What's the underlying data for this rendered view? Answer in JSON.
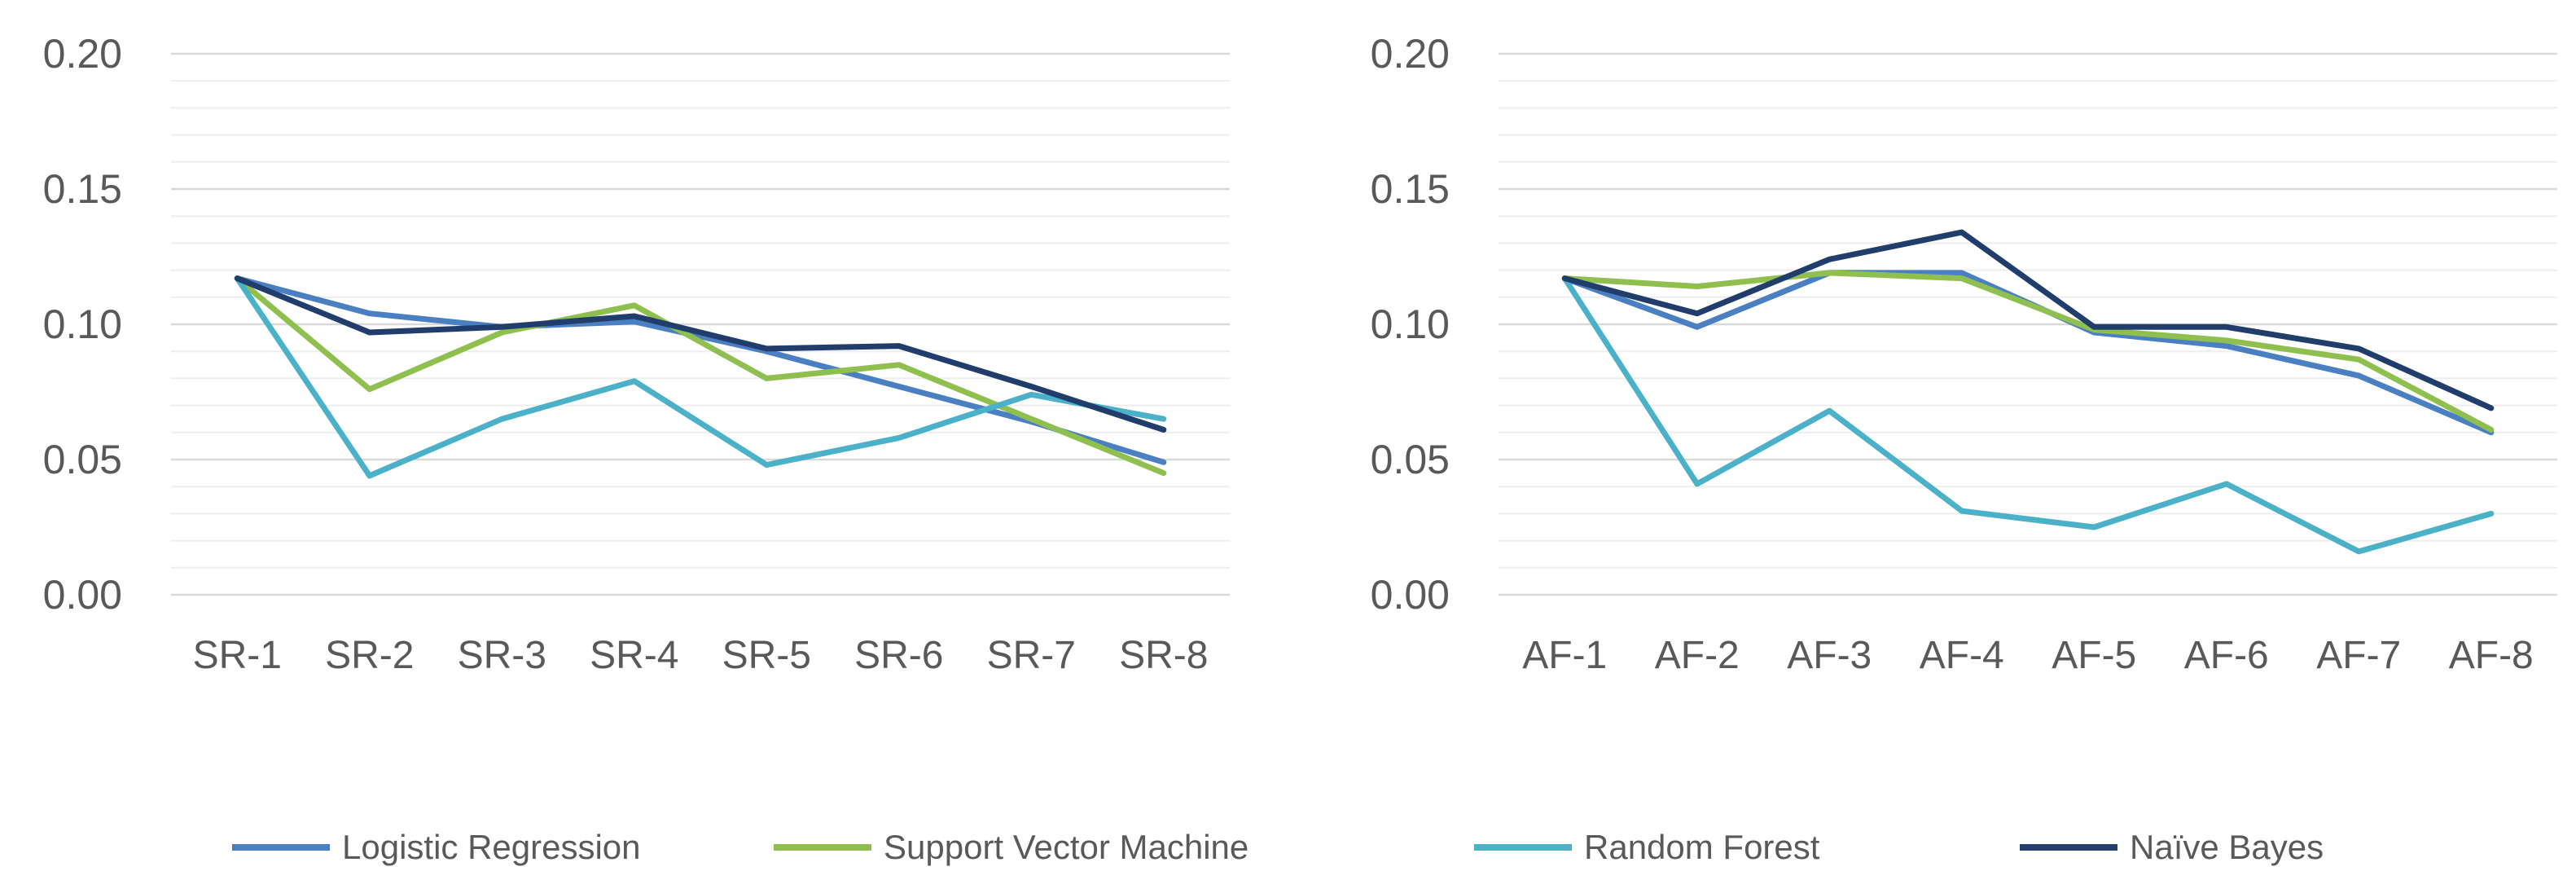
{
  "chart_data": [
    {
      "type": "line",
      "title": "",
      "xlabel": "",
      "ylabel": "",
      "ylim": [
        0,
        0.2
      ],
      "yticks": [
        "0.00",
        "0.05",
        "0.10",
        "0.15",
        "0.20"
      ],
      "ytick_values": [
        0,
        0.05,
        0.1,
        0.15,
        0.2
      ],
      "minor_grid_step": 0.01,
      "categories": [
        "SR-1",
        "SR-2",
        "SR-3",
        "SR-4",
        "SR-5",
        "SR-6",
        "SR-7",
        "SR-8"
      ],
      "series": [
        {
          "name": "Logistic Regression",
          "values": [
            0.117,
            0.104,
            0.099,
            0.101,
            0.09,
            0.077,
            0.064,
            0.049
          ]
        },
        {
          "name": "Support Vector Machine",
          "values": [
            0.117,
            0.076,
            0.097,
            0.107,
            0.08,
            0.085,
            0.065,
            0.045
          ]
        },
        {
          "name": "Random Forest",
          "values": [
            0.117,
            0.044,
            0.065,
            0.079,
            0.048,
            0.058,
            0.074,
            0.065
          ]
        },
        {
          "name": "Naïve Bayes",
          "values": [
            0.117,
            0.097,
            0.099,
            0.103,
            0.091,
            0.092,
            0.077,
            0.061
          ]
        }
      ]
    },
    {
      "type": "line",
      "title": "",
      "xlabel": "",
      "ylabel": "",
      "ylim": [
        0,
        0.2
      ],
      "yticks": [
        "0.00",
        "0.05",
        "0.10",
        "0.15",
        "0.20"
      ],
      "ytick_values": [
        0,
        0.05,
        0.1,
        0.15,
        0.2
      ],
      "minor_grid_step": 0.01,
      "categories": [
        "AF-1",
        "AF-2",
        "AF-3",
        "AF-4",
        "AF-5",
        "AF-6",
        "AF-7",
        "AF-8"
      ],
      "series": [
        {
          "name": "Logistic Regression",
          "values": [
            0.117,
            0.099,
            0.119,
            0.119,
            0.097,
            0.092,
            0.081,
            0.06
          ]
        },
        {
          "name": "Support Vector Machine",
          "values": [
            0.117,
            0.114,
            0.119,
            0.117,
            0.098,
            0.094,
            0.087,
            0.061
          ]
        },
        {
          "name": "Random Forest",
          "values": [
            0.117,
            0.041,
            0.068,
            0.031,
            0.025,
            0.041,
            0.016,
            0.03
          ]
        },
        {
          "name": "Naïve Bayes",
          "values": [
            0.117,
            0.104,
            0.124,
            0.134,
            0.099,
            0.099,
            0.091,
            0.069
          ]
        }
      ]
    }
  ],
  "legend": {
    "placement": "bottom",
    "items": [
      {
        "name": "Logistic Regression",
        "color": "#4a7fc1"
      },
      {
        "name": "Support Vector Machine",
        "color": "#8fbf4f"
      },
      {
        "name": "Random Forest",
        "color": "#4bb1c8"
      },
      {
        "name": "Naïve Bayes",
        "color": "#203d6b"
      }
    ]
  },
  "colors": {
    "major_grid": "#d9d9d9",
    "minor_grid": "#eeeeee",
    "text": "#595959"
  }
}
